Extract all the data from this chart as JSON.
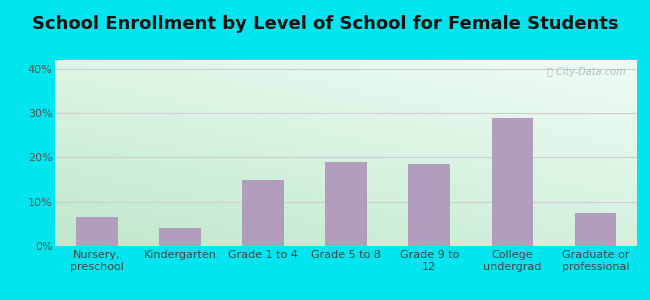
{
  "title": "School Enrollment by Level of School for Female Students",
  "categories": [
    "Nursery,\npreschool",
    "Kindergarten",
    "Grade 1 to 4",
    "Grade 5 to 8",
    "Grade 9 to\n12",
    "College\nundergrad",
    "Graduate or\nprofessional"
  ],
  "values": [
    6.5,
    4.0,
    15.0,
    19.0,
    18.5,
    29.0,
    7.5
  ],
  "bar_color": "#b39dbe",
  "ylim": [
    0,
    42
  ],
  "yticks": [
    0,
    10,
    20,
    30,
    40
  ],
  "ytick_labels": [
    "0%",
    "10%",
    "20%",
    "30%",
    "40%"
  ],
  "background_outer": "#00e5ee",
  "grad_topleft": "#c8edd8",
  "grad_bottomright": "#f5fffa",
  "grid_color": "#d0d0d0",
  "title_fontsize": 13,
  "tick_fontsize": 8,
  "watermark": "ⓘ City-Data.com",
  "bar_width": 0.5
}
